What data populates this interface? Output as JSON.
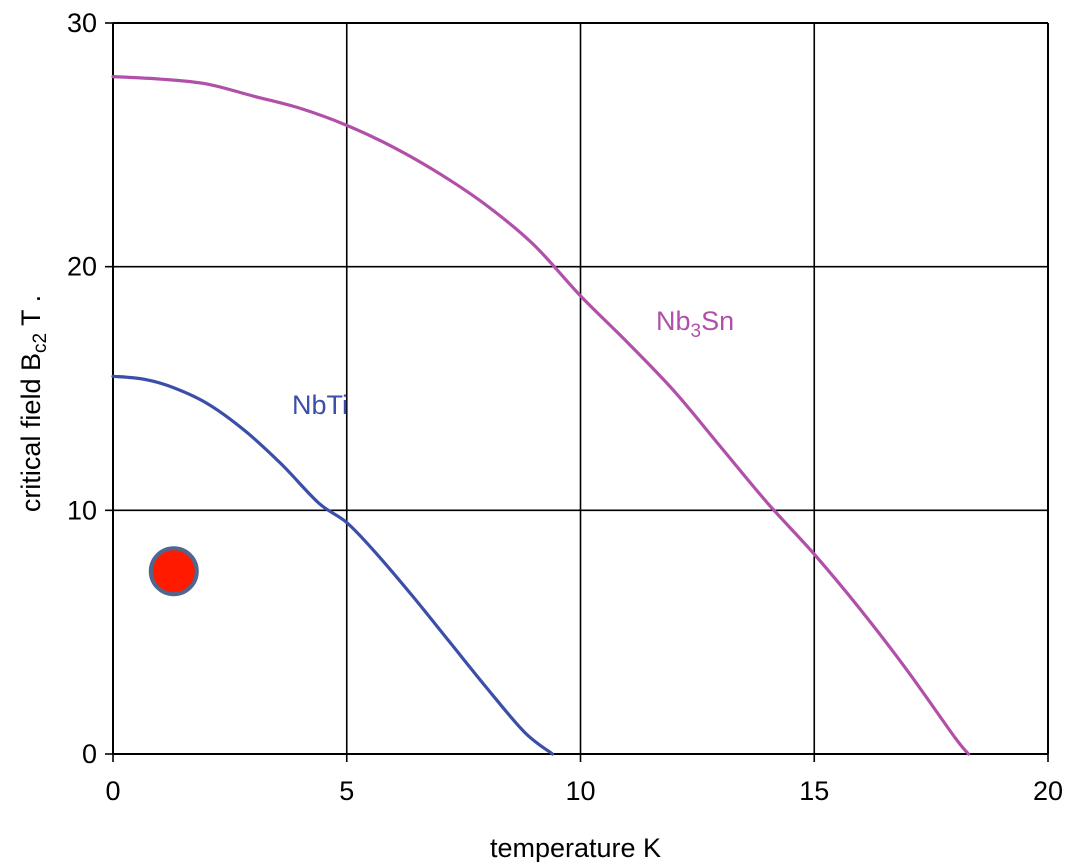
{
  "chart_data": {
    "type": "line",
    "title": "",
    "xlabel": "temperature K",
    "ylabel_parts": {
      "main": "critical field  B",
      "sub": "c2",
      "tail": "  T ."
    },
    "xlim": [
      0,
      20
    ],
    "ylim": [
      0,
      30
    ],
    "x_ticks": [
      "0",
      "5",
      "10",
      "15",
      "20"
    ],
    "y_ticks": [
      "0",
      "10",
      "20",
      "30"
    ],
    "grid": true,
    "series": [
      {
        "name": "NbTi",
        "label_parts": {
          "main": "NbTi",
          "sub": "",
          "tail": ""
        },
        "color": "#3b4fa8",
        "x": [
          0,
          0.6,
          1.2,
          2.0,
          2.8,
          3.6,
          4.4,
          5.0,
          5.6,
          6.4,
          7.2,
          8.0,
          8.8,
          9.4
        ],
        "y": [
          15.5,
          15.4,
          15.1,
          14.4,
          13.3,
          11.9,
          10.3,
          9.5,
          8.3,
          6.5,
          4.6,
          2.7,
          0.9,
          0.0
        ]
      },
      {
        "name": "Nb3Sn",
        "label_parts": {
          "main": "Nb",
          "sub": "3",
          "tail": "Sn"
        },
        "color": "#b150a8",
        "x": [
          0,
          1.0,
          2.0,
          3.0,
          4.0,
          5.0,
          6.0,
          7.0,
          8.0,
          9.0,
          10.0,
          11.0,
          12.0,
          13.0,
          14.0,
          15.0,
          16.0,
          17.0,
          18.0,
          18.3
        ],
        "y": [
          27.8,
          27.7,
          27.5,
          27.0,
          26.5,
          25.8,
          24.9,
          23.8,
          22.5,
          20.9,
          18.8,
          16.9,
          14.9,
          12.6,
          10.3,
          8.2,
          5.9,
          3.4,
          0.7,
          0.0
        ]
      }
    ],
    "markers": [
      {
        "name": "operating-point",
        "x": 1.3,
        "y": 7.5,
        "fill": "#ff1a00",
        "stroke": "#4f6690"
      }
    ]
  }
}
